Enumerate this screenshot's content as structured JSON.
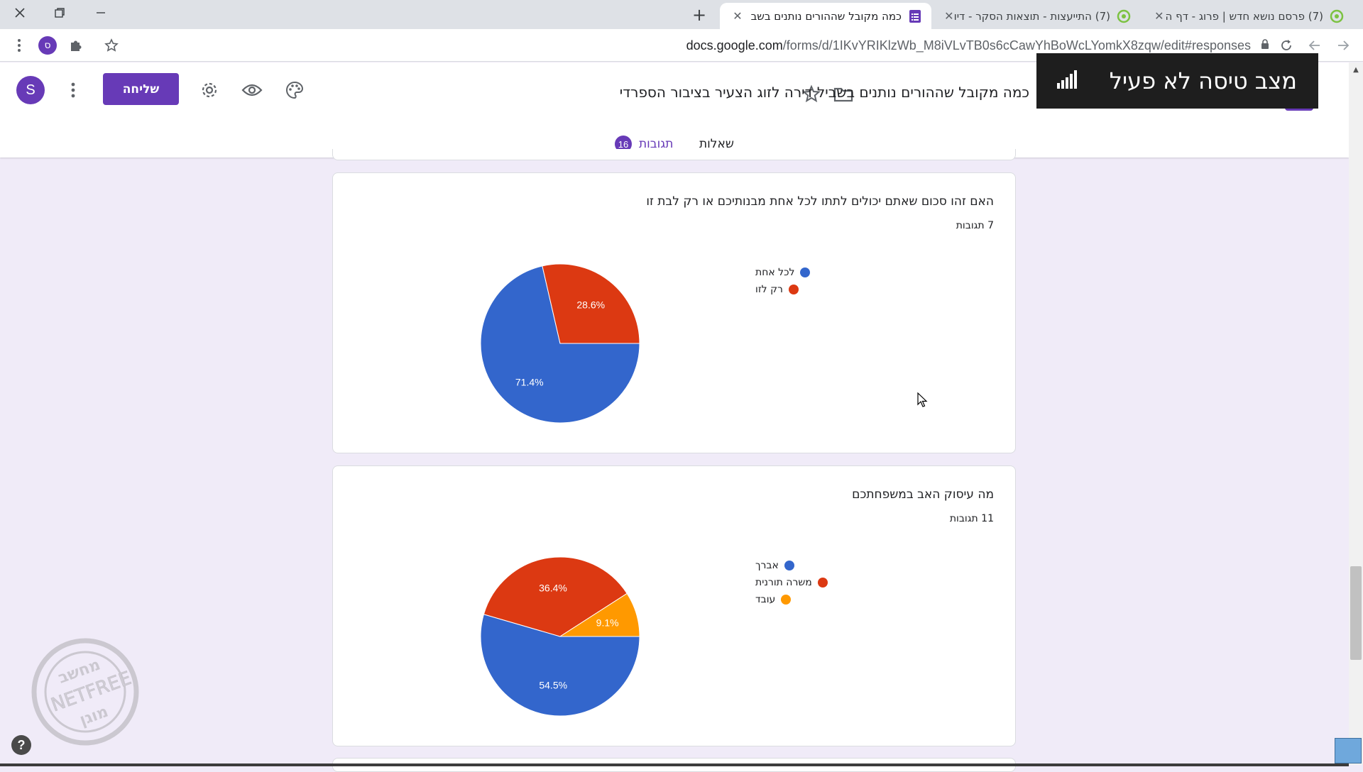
{
  "browser": {
    "tabs": [
      {
        "title": "(7) פרסם נושא חדש | פרוג - דף ה",
        "icon": "prog-favicon"
      },
      {
        "title": "(7) התייעצות - תוצאות הסקר - דיו",
        "icon": "prog-favicon"
      },
      {
        "title": "כמה מקובל שההורים נותנים בשב",
        "icon": "google-forms-favicon",
        "active": true
      }
    ],
    "url_main": "docs.google.com",
    "url_path": "/forms/d/1IKvYRIKlzWb_M8iVLvTB0s6cCawYhBoWcLYomkX8zqw/edit#responses",
    "profile_initial": "ס"
  },
  "header": {
    "form_title": "כמה מקובל שההורים נותנים בשביל דירה לזוג הצעיר בציבור הספרדי",
    "send_label": "שליחה",
    "avatar_initial": "S",
    "tabs": {
      "questions": "שאלות",
      "responses": "תגובות",
      "responses_count": "16"
    },
    "accent_color": "#673ab7"
  },
  "overlay": {
    "text": "מצב טיסה לא פעיל",
    "icon": "signal-bars-icon"
  },
  "questions": [
    {
      "title": "האם זהו סכום שאתם יכולים לתתו לכל אחת מבנותיכם או רק לבת זו",
      "count_label": "7 תגובות",
      "chart_data": {
        "type": "pie",
        "slices": [
          {
            "label": "לכל אחת",
            "value": 71.4,
            "display": "71.4%",
            "color": "#3366cc"
          },
          {
            "label": "רק לזו",
            "value": 28.6,
            "display": "28.6%",
            "color": "#dc3912"
          }
        ]
      }
    },
    {
      "title": "מה עיסוק האב במשפחתכם",
      "count_label": "11 תגובות",
      "chart_data": {
        "type": "pie",
        "slices": [
          {
            "label": "אברך",
            "value": 54.5,
            "display": "54.5%",
            "color": "#3366cc"
          },
          {
            "label": "משרה תורנית",
            "value": 36.4,
            "display": "36.4%",
            "color": "#dc3912"
          },
          {
            "label": "עובד",
            "value": 9.1,
            "display": "9.1%",
            "color": "#ff9900"
          }
        ]
      }
    }
  ],
  "help_label": "?",
  "watermark_text": [
    "מחשב",
    "NETFREE",
    "מוגן"
  ]
}
